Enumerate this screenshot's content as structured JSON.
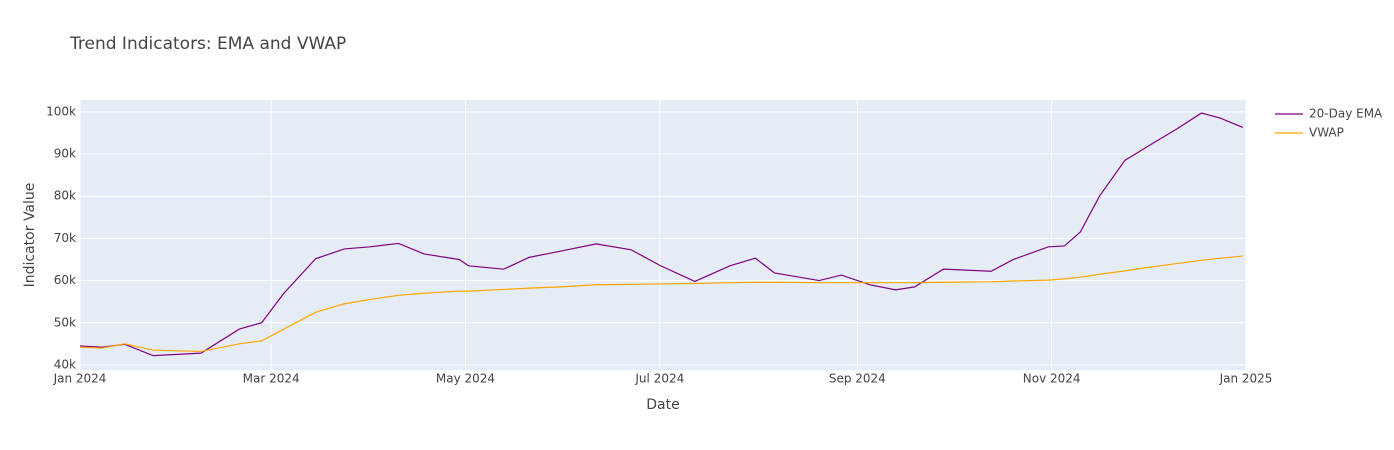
{
  "chart_data": {
    "type": "line",
    "title": "Trend Indicators: EMA and VWAP",
    "x_label": "Date",
    "y_label": "Indicator Value",
    "x": [
      "2024-01-01",
      "2024-01-08",
      "2024-01-15",
      "2024-01-24",
      "2024-02-08",
      "2024-02-20",
      "2024-02-27",
      "2024-03-05",
      "2024-03-15",
      "2024-03-24",
      "2024-04-01",
      "2024-04-10",
      "2024-04-18",
      "2024-04-29",
      "2024-05-02",
      "2024-05-13",
      "2024-05-21",
      "2024-05-31",
      "2024-06-11",
      "2024-06-22",
      "2024-07-01",
      "2024-07-12",
      "2024-07-23",
      "2024-07-31",
      "2024-08-06",
      "2024-08-20",
      "2024-08-27",
      "2024-09-05",
      "2024-09-13",
      "2024-09-19",
      "2024-09-28",
      "2024-10-13",
      "2024-10-20",
      "2024-10-31",
      "2024-11-05",
      "2024-11-10",
      "2024-11-16",
      "2024-11-24",
      "2024-12-02",
      "2024-12-10",
      "2024-12-18",
      "2024-12-24",
      "2024-12-31"
    ],
    "series": [
      {
        "name": "20-Day EMA",
        "color": "#800080",
        "values": [
          44500,
          44200,
          44900,
          42200,
          42800,
          48500,
          50000,
          57000,
          65200,
          67500,
          68000,
          68800,
          66300,
          65000,
          63500,
          62700,
          65500,
          67000,
          68700,
          67300,
          63600,
          59800,
          63500,
          65300,
          61800,
          60000,
          61300,
          59000,
          57800,
          58500,
          62700,
          62200,
          65000,
          68000,
          68200,
          71500,
          80000,
          88500,
          92200,
          95800,
          99700,
          98500,
          96300
        ]
      },
      {
        "name": "VWAP",
        "color": "#ffa500",
        "values": [
          44200,
          44000,
          45000,
          43500,
          43200,
          45000,
          45700,
          48500,
          52500,
          54500,
          55500,
          56500,
          57000,
          57500,
          57500,
          57900,
          58200,
          58500,
          59000,
          59100,
          59200,
          59300,
          59500,
          59600,
          59600,
          59500,
          59500,
          59500,
          59500,
          59500,
          59600,
          59700,
          59900,
          60100,
          60400,
          60800,
          61500,
          62300,
          63200,
          64000,
          64800,
          65300,
          65800
        ]
      }
    ],
    "xlim": [
      "2024-01-01",
      "2025-01-01"
    ],
    "xticks": [
      {
        "value": "2024-01-01",
        "label": "Jan 2024"
      },
      {
        "value": "2024-03-01",
        "label": "Mar 2024"
      },
      {
        "value": "2024-05-01",
        "label": "May 2024"
      },
      {
        "value": "2024-07-01",
        "label": "Jul 2024"
      },
      {
        "value": "2024-09-01",
        "label": "Sep 2024"
      },
      {
        "value": "2024-11-01",
        "label": "Nov 2024"
      },
      {
        "value": "2025-01-01",
        "label": "Jan 2025"
      }
    ],
    "ylim": [
      38800,
      102800
    ],
    "yticks": [
      {
        "value": 40000,
        "label": "40k"
      },
      {
        "value": 50000,
        "label": "50k"
      },
      {
        "value": 60000,
        "label": "60k"
      },
      {
        "value": 70000,
        "label": "70k"
      },
      {
        "value": 80000,
        "label": "80k"
      },
      {
        "value": 90000,
        "label": "90k"
      },
      {
        "value": 100000,
        "label": "100k"
      }
    ],
    "grid": true,
    "legend": "right"
  }
}
